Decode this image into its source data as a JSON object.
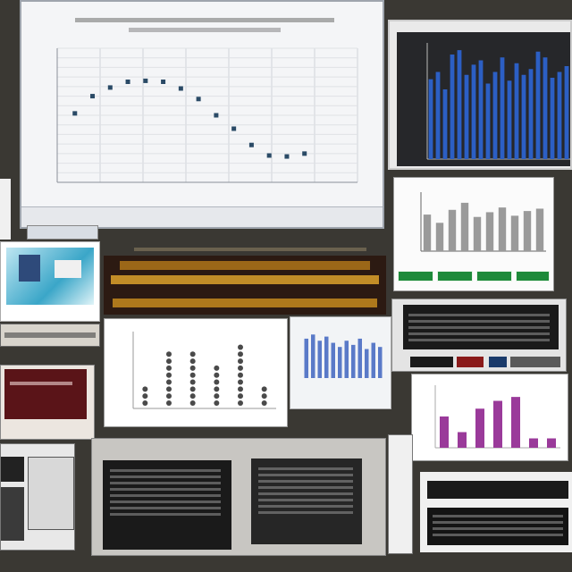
{
  "chart_data": [
    {
      "type": "scatter",
      "title": "",
      "xlabel": "",
      "ylabel": "",
      "series": [
        {
          "x": [
            1,
            2,
            3,
            4,
            5,
            6,
            7,
            8,
            9,
            10,
            11,
            12,
            13,
            14
          ],
          "y": [
            7.2,
            9.0,
            9.9,
            10.5,
            10.6,
            10.5,
            9.8,
            8.7,
            7.0,
            5.6,
            3.9,
            2.8,
            2.7,
            3.0
          ]
        }
      ],
      "xlim": [
        0,
        17
      ],
      "ylim": [
        0,
        14
      ],
      "grid": true
    },
    {
      "type": "bar",
      "title": "",
      "values": [
        55,
        60,
        48,
        72,
        75,
        58,
        65,
        68,
        52,
        60,
        70,
        54,
        66,
        58,
        62,
        74,
        70,
        56,
        60,
        64
      ],
      "ylim": [
        0,
        80
      ]
    },
    {
      "type": "bar",
      "title": "",
      "values": [
        62,
        48,
        70,
        82,
        58,
        66,
        74,
        60,
        68,
        72
      ],
      "ylim": [
        0,
        100
      ]
    },
    {
      "type": "scatter",
      "title": "",
      "values": [
        3,
        8,
        8,
        6,
        9,
        3
      ],
      "ylim": [
        0,
        10
      ]
    },
    {
      "type": "bar",
      "title": "",
      "values": [
        38,
        42,
        36,
        40,
        34,
        30,
        36,
        32,
        38,
        28,
        34,
        30
      ],
      "ylim": [
        0,
        50
      ]
    },
    {
      "type": "bar",
      "title": "",
      "values": [
        4,
        2,
        5,
        6,
        6.5,
        1.2,
        1.2
      ],
      "ylim": [
        0,
        8
      ]
    }
  ],
  "colors": {
    "background": "#3a3833",
    "scatter_point": "#2a4a66",
    "blue_bar": "#2c5fc4",
    "gray_bar": "#9a9a9a",
    "dark_gray_point": "#4a4a4a",
    "purple_bar": "#9a3a9a",
    "green_button": "#1e8a3a",
    "brown_banner": "#3b2418",
    "gold_banner": "#c48a1e"
  }
}
